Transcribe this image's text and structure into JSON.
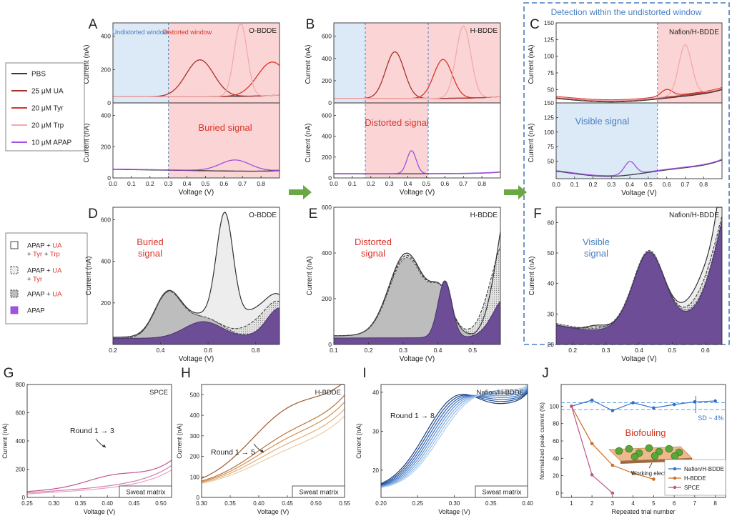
{
  "figure": {
    "detection_box_title": "Detection within the undistorted window",
    "arrow_color": "#6aa844",
    "colors": {
      "pbs": "#3a3a3a",
      "ua": "#a8322c",
      "tyr": "#d9342b",
      "trp": "#f2aaaa",
      "apap": "#a050e0",
      "undistorted_fill": "#dce9f6",
      "distorted_fill": "#fbd5d5",
      "apap_fill": "#6c4d96",
      "gray_fill": "#bdbdbd",
      "light_fill": "#ededed",
      "blue_text": "#4a7fc0",
      "red_text": "#d9342b",
      "pink": "#c0548e",
      "orange": "#c9702a",
      "blue": "#2f6fc7"
    }
  },
  "legend_top": {
    "items": [
      {
        "label": "PBS",
        "color": "#3a3a3a"
      },
      {
        "label": "25 μM UA",
        "color": "#a8322c"
      },
      {
        "label": "20 μM Tyr",
        "color": "#d9342b"
      },
      {
        "label": "20 μM Trp",
        "color": "#f2aaaa"
      },
      {
        "label": "10 μM APAP",
        "color": "#a050e0"
      }
    ]
  },
  "legend_mid": {
    "items": [
      {
        "parts": [
          [
            "APAP + ",
            "k"
          ],
          [
            "UA",
            "r"
          ]
        ],
        "parts2": [
          [
            "+ ",
            "k"
          ],
          [
            "Tyr",
            "r"
          ],
          [
            " + ",
            "k"
          ],
          [
            "Trp",
            "r"
          ]
        ],
        "kind": "white"
      },
      {
        "parts": [
          [
            "APAP + ",
            "k"
          ],
          [
            "UA",
            "r"
          ]
        ],
        "parts2": [
          [
            "+ ",
            "k"
          ],
          [
            "Tyr",
            "r"
          ]
        ],
        "kind": "dashed"
      },
      {
        "parts": [
          [
            "APAP + ",
            "k"
          ],
          [
            "UA",
            "r"
          ]
        ],
        "kind": "gray"
      },
      {
        "parts": [
          [
            "APAP",
            "k"
          ]
        ],
        "kind": "purple"
      }
    ]
  },
  "panel_labels": [
    "A",
    "B",
    "C",
    "D",
    "E",
    "F",
    "G",
    "H",
    "I",
    "J"
  ],
  "chart_data": [
    {
      "panel": "A",
      "type": "line",
      "electrode": "O-BDDE",
      "xlabel": "Voltage (V)",
      "ylabel": "Current (nA)",
      "xlim": [
        0,
        0.9
      ],
      "xticks": [
        "0.0",
        "0.1",
        "0.2",
        "0.3",
        "0.4",
        "0.5",
        "0.6",
        "0.7",
        "0.8"
      ],
      "top_ylim": [
        0,
        480
      ],
      "top_yticks": [
        "0",
        "200",
        "400"
      ],
      "bottom_ylim": [
        0,
        480
      ],
      "bottom_yticks": [
        "0",
        "200",
        "400"
      ],
      "undistorted_window": [
        0,
        0.3
      ],
      "window_labels": [
        "Undistorted window",
        "Distorted window"
      ],
      "region_text": "Buried signal",
      "series": [
        {
          "name": "PBS",
          "peaks": []
        },
        {
          "name": "25 μM UA",
          "peaks": [
            {
              "x": 0.47,
              "y": 220
            }
          ]
        },
        {
          "name": "20 μM Tyr",
          "peaks": [
            {
              "x": 0.86,
              "y": 200
            }
          ]
        },
        {
          "name": "20 μM Trp",
          "peaks": [
            {
              "x": 0.69,
              "y": 440
            }
          ]
        },
        {
          "name": "10 μM APAP",
          "peaks": [
            {
              "x": 0.66,
              "y": 115
            }
          ]
        }
      ]
    },
    {
      "panel": "B",
      "type": "line",
      "electrode": "H-BDDE",
      "xlabel": "Voltage (V)",
      "ylabel": "Current (nA)",
      "xlim": [
        0,
        0.9
      ],
      "xticks": [
        "0.0",
        "0.1",
        "0.2",
        "0.3",
        "0.4",
        "0.5",
        "0.6",
        "0.7",
        "0.8"
      ],
      "top_ylim": [
        0,
        720
      ],
      "top_yticks": [
        "0",
        "200",
        "400",
        "600"
      ],
      "bottom_ylim": [
        0,
        720
      ],
      "bottom_yticks": [
        "0",
        "200",
        "400",
        "600"
      ],
      "top_undistorted_windows": [
        [
          0,
          0.17
        ],
        [
          0.51,
          0.9
        ]
      ],
      "bottom_distorted_window": [
        0.17,
        0.51
      ],
      "region_text": "Distorted signal",
      "series": [
        {
          "name": "PBS",
          "peaks": []
        },
        {
          "name": "25 μM UA",
          "peaks": [
            {
              "x": 0.33,
              "y": 420
            }
          ]
        },
        {
          "name": "20 μM Tyr",
          "peaks": [
            {
              "x": 0.59,
              "y": 350
            }
          ]
        },
        {
          "name": "20 μM Trp",
          "peaks": [
            {
              "x": 0.7,
              "y": 650
            }
          ]
        },
        {
          "name": "10 μM APAP",
          "peaks": [
            {
              "x": 0.42,
              "y": 260
            }
          ]
        }
      ]
    },
    {
      "panel": "C",
      "type": "line",
      "electrode": "Nafion/H-BDDE",
      "xlabel": "Voltage (V)",
      "ylabel": "Current (nA)",
      "xlim": [
        0,
        0.9
      ],
      "xticks": [
        "0.0",
        "0.1",
        "0.2",
        "0.3",
        "0.4",
        "0.5",
        "0.6",
        "0.7",
        "0.8"
      ],
      "top_ylim": [
        30,
        150
      ],
      "top_yticks": [
        "50",
        "75",
        "100",
        "125",
        "150"
      ],
      "bottom_ylim": [
        20,
        150
      ],
      "bottom_yticks": [
        "50",
        "75",
        "100",
        "125",
        "150"
      ],
      "undistorted_window": [
        0,
        0.55
      ],
      "region_text": "Visible signal",
      "series": [
        {
          "name": "PBS",
          "peaks": []
        },
        {
          "name": "25 μM UA",
          "peaks": []
        },
        {
          "name": "20 μM Tyr",
          "peaks": [
            {
              "x": 0.6,
              "y": 48
            }
          ]
        },
        {
          "name": "20 μM Trp",
          "peaks": [
            {
              "x": 0.7,
              "y": 123
            }
          ]
        },
        {
          "name": "10 μM APAP",
          "peaks": [
            {
              "x": 0.4,
              "y": 48
            }
          ]
        }
      ]
    },
    {
      "panel": "D",
      "type": "area",
      "electrode": "O-BDDE",
      "xlabel": "Voltage (V)",
      "ylabel": "Current (nA)",
      "xlim": [
        0.2,
        0.9
      ],
      "xticks": [
        "0.2",
        "0.4",
        "0.6",
        "0.8"
      ],
      "ylim": [
        0,
        660
      ],
      "yticks": [
        "200",
        "400",
        "600"
      ],
      "region_text": "Buried signal",
      "series": [
        {
          "name": "APAP + UA + Tyr + Trp",
          "peaks": [
            {
              "x": 0.43,
              "y": 250
            },
            {
              "x": 0.67,
              "y": 640
            }
          ]
        },
        {
          "name": "APAP + UA + Tyr",
          "peaks": [
            {
              "x": 0.43,
              "y": 240
            },
            {
              "x": 0.8,
              "y": 200
            }
          ]
        },
        {
          "name": "APAP + UA",
          "peaks": [
            {
              "x": 0.43,
              "y": 240
            }
          ]
        },
        {
          "name": "APAP",
          "peaks": [
            {
              "x": 0.58,
              "y": 110
            }
          ]
        }
      ]
    },
    {
      "panel": "E",
      "type": "area",
      "electrode": "H-BDDE",
      "xlabel": "Voltage (V)",
      "ylabel": "Current (nA)",
      "xlim": [
        0.1,
        0.58
      ],
      "xticks": [
        "0.1",
        "0.2",
        "0.3",
        "0.4",
        "0.5"
      ],
      "ylim": [
        0,
        600
      ],
      "yticks": [
        "0",
        "200",
        "400",
        "600"
      ],
      "region_text": "Distorted signal",
      "series": [
        {
          "name": "APAP + UA + Tyr + Trp",
          "peaks": [
            {
              "x": 0.31,
              "y": 390
            },
            {
              "x": 0.4,
              "y": 345
            }
          ]
        },
        {
          "name": "APAP + UA + Tyr",
          "peaks": [
            {
              "x": 0.31,
              "y": 380
            },
            {
              "x": 0.4,
              "y": 340
            }
          ]
        },
        {
          "name": "APAP + UA",
          "peaks": [
            {
              "x": 0.31,
              "y": 370
            },
            {
              "x": 0.41,
              "y": 320
            }
          ]
        },
        {
          "name": "APAP",
          "peaks": [
            {
              "x": 0.42,
              "y": 275
            }
          ]
        }
      ]
    },
    {
      "panel": "F",
      "type": "area",
      "electrode": "Nafion/H-BDDE",
      "xlabel": "Voltage (V)",
      "ylabel": "Current (nA)",
      "xlim": [
        0.15,
        0.65
      ],
      "xticks": [
        "0.2",
        "0.3",
        "0.4",
        "0.5",
        "0.6"
      ],
      "ylim": [
        20,
        65
      ],
      "yticks": [
        "20",
        "30",
        "40",
        "50",
        "60"
      ],
      "region_text": "Visible signal",
      "series": [
        {
          "name": "APAP + UA + Tyr + Trp",
          "peaks": [
            {
              "x": 0.27,
              "y": 26.5
            },
            {
              "x": 0.43,
              "y": 47
            }
          ]
        },
        {
          "name": "APAP + UA + Tyr",
          "peaks": [
            {
              "x": 0.27,
              "y": 26
            },
            {
              "x": 0.43,
              "y": 47
            }
          ]
        },
        {
          "name": "APAP + UA",
          "peaks": [
            {
              "x": 0.43,
              "y": 47
            }
          ]
        },
        {
          "name": "APAP",
          "peaks": [
            {
              "x": 0.43,
              "y": 47
            }
          ]
        }
      ]
    },
    {
      "panel": "G",
      "type": "line",
      "electrode": "SPCE",
      "xlabel": "Voltage (V)",
      "ylabel": "Current (nA)",
      "xlim": [
        0.25,
        0.52
      ],
      "xticks": [
        "0.25",
        "0.30",
        "0.35",
        "0.40",
        "0.45",
        "0.50"
      ],
      "ylim": [
        0,
        800
      ],
      "yticks": [
        "0",
        "200",
        "400",
        "600",
        "800"
      ],
      "annotation": "Round 1 → 3",
      "matrix_label": "Sweat matrix",
      "rounds": 3
    },
    {
      "panel": "H",
      "type": "line",
      "electrode": "H-BDDE",
      "xlabel": "Voltage (V)",
      "ylabel": "Current (nA)",
      "xlim": [
        0.3,
        0.55
      ],
      "xticks": [
        "0.30",
        "0.35",
        "0.40",
        "0.45",
        "0.50",
        "0.55"
      ],
      "ylim": [
        0,
        550
      ],
      "yticks": [
        "0",
        "100",
        "200",
        "300",
        "400",
        "500"
      ],
      "annotation": "Round 1 → 5",
      "matrix_label": "Sweat matrix",
      "rounds": 5
    },
    {
      "panel": "I",
      "type": "line",
      "electrode": "Nafion/H-BDDE",
      "xlabel": "Voltage (V)",
      "ylabel": "Current (nA)",
      "xlim": [
        0.2,
        0.4
      ],
      "xticks": [
        "0.20",
        "0.25",
        "0.30",
        "0.35",
        "0.40"
      ],
      "ylim": [
        13,
        42
      ],
      "yticks": [
        "20",
        "30",
        "40"
      ],
      "annotation": "Round 1 → 8",
      "matrix_label": "Sweat matrix",
      "rounds": 8
    },
    {
      "panel": "J",
      "type": "line",
      "xlabel": "Repeated trial number",
      "ylabel": "Normalized peak current (%)",
      "xlim": [
        0.5,
        8.5
      ],
      "xticks": [
        "1",
        "2",
        "3",
        "4",
        "5",
        "6",
        "7",
        "8"
      ],
      "ylim": [
        -5,
        125
      ],
      "yticks": [
        "0",
        "20",
        "40",
        "60",
        "80",
        "100"
      ],
      "annotation": "SD ~ 4%",
      "inset_title": "Biofouling",
      "inset_label": "Working electrode",
      "legend": "bottom-right",
      "series": [
        {
          "name": "Nafion/H-BDDE",
          "x": [
            1,
            2,
            3,
            4,
            5,
            6,
            7,
            8
          ],
          "values": [
            100,
            107,
            95,
            104,
            98,
            102,
            105,
            106
          ]
        },
        {
          "name": "H-BDDE",
          "x": [
            1,
            2,
            3,
            4,
            5
          ],
          "values": [
            100,
            57,
            32,
            23,
            16
          ]
        },
        {
          "name": "SPCE",
          "x": [
            1,
            2,
            3
          ],
          "values": [
            100,
            21,
            0
          ]
        }
      ]
    }
  ]
}
